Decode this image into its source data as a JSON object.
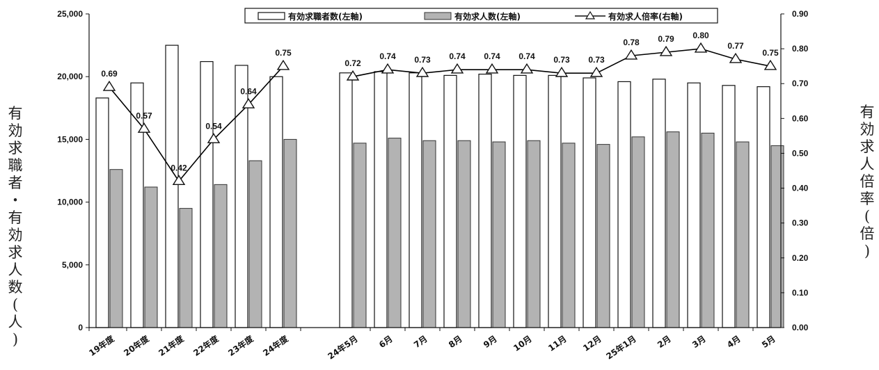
{
  "chart_data": {
    "type": "bar",
    "categories": [
      "19年度",
      "20年度",
      "21年度",
      "22年度",
      "23年度",
      "24年度",
      "24年5月",
      "6月",
      "7月",
      "8月",
      "9月",
      "10月",
      "11月",
      "12月",
      "25年1月",
      "2月",
      "3月",
      "4月",
      "5月"
    ],
    "series": [
      {
        "name": "有効求職者数(左軸)",
        "axis": "left",
        "type": "bar",
        "color": "#ffffff",
        "values": [
          18300,
          19500,
          22500,
          21200,
          20900,
          20000,
          20300,
          20400,
          20300,
          20100,
          20200,
          20100,
          20100,
          19900,
          19600,
          19800,
          19500,
          19300,
          19200
        ]
      },
      {
        "name": "有効求人数(左軸)",
        "axis": "left",
        "type": "bar",
        "color": "#b3b3b3",
        "values": [
          12600,
          11200,
          9500,
          11400,
          13300,
          15000,
          14700,
          15100,
          14900,
          14900,
          14800,
          14900,
          14700,
          14600,
          15200,
          15600,
          15500,
          14800,
          14500
        ]
      },
      {
        "name": "有効求人倍率(右軸)",
        "axis": "right",
        "type": "line",
        "marker": "triangle",
        "color": "#000000",
        "values": [
          0.69,
          0.57,
          0.42,
          0.54,
          0.64,
          0.75,
          0.72,
          0.74,
          0.73,
          0.74,
          0.74,
          0.74,
          0.73,
          0.73,
          0.78,
          0.79,
          0.8,
          0.77,
          0.75
        ],
        "labels": [
          "0.69",
          "0.57",
          "0.42",
          "0.54",
          "0.64",
          "0.75",
          "0.72",
          "0.74",
          "0.73",
          "0.74",
          "0.74",
          "0.74",
          "0.73",
          "0.73",
          "0.78",
          "0.79",
          "0.80",
          "0.77",
          "0.75"
        ]
      }
    ],
    "ylabel": "有効求職者・有効求人数(人)",
    "ylabel_right": "有効求人倍率(倍)",
    "ylim": [
      0,
      25000
    ],
    "ylim_right": [
      0,
      0.9
    ],
    "yticks": [
      "0",
      "5,000",
      "10,000",
      "15,000",
      "20,000",
      "25,000"
    ],
    "yticks_right": [
      "0.00",
      "0.10",
      "0.20",
      "0.30",
      "0.40",
      "0.50",
      "0.60",
      "0.70",
      "0.80",
      "0.90"
    ],
    "legend_position": "top",
    "grid": false
  }
}
